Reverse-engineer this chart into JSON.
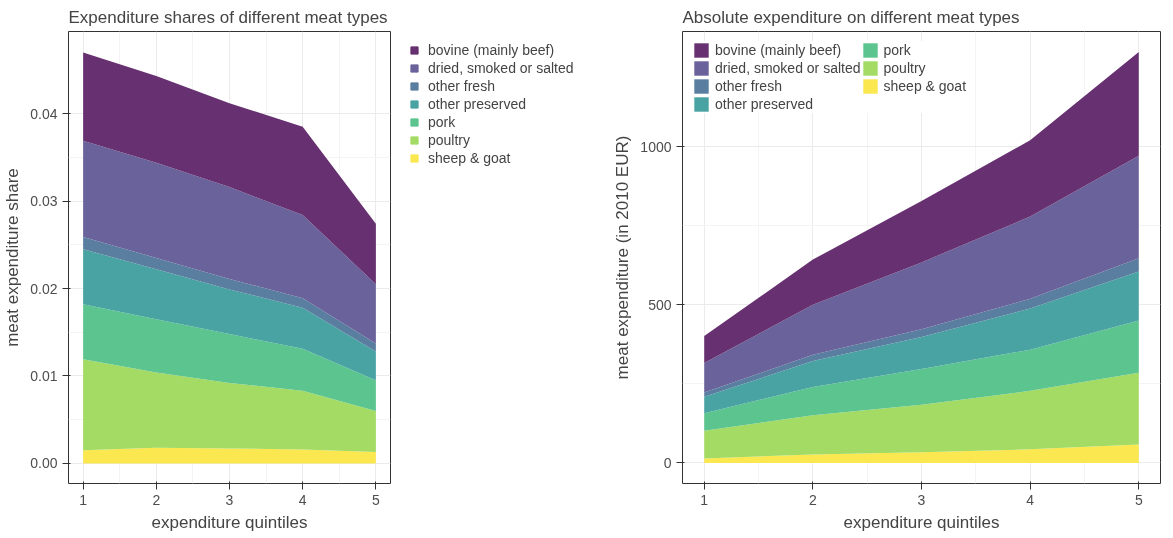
{
  "chart_data": [
    {
      "type": "area",
      "title": "Expenditure shares of different meat types",
      "xlabel": "expenditure quintiles",
      "ylabel": "meat expenditure share",
      "stacked": true,
      "x": [
        1,
        2,
        3,
        4,
        5
      ],
      "xlim": [
        0.8,
        5.2
      ],
      "xticks": [
        1,
        2,
        3,
        4,
        5
      ],
      "ylim": [
        -0.0023,
        0.0494
      ],
      "yticks": [
        {
          "value": 0,
          "label": "0.00"
        },
        {
          "value": 0.01,
          "label": "0.01"
        },
        {
          "value": 0.02,
          "label": "0.02"
        },
        {
          "value": 0.03,
          "label": "0.03"
        },
        {
          "value": 0.04,
          "label": "0.04"
        }
      ],
      "grid": true,
      "legend": "top right",
      "series": [
        {
          "name": "sheep & goat",
          "color": "#fbe74f",
          "values": [
            0.0015,
            0.0018,
            0.0017,
            0.0016,
            0.0013
          ]
        },
        {
          "name": "poultry",
          "color": "#a3db65",
          "values": [
            0.0104,
            0.0086,
            0.0075,
            0.0067,
            0.0047
          ]
        },
        {
          "name": "pork",
          "color": "#5bc48f",
          "values": [
            0.0063,
            0.0061,
            0.0056,
            0.0048,
            0.0035
          ]
        },
        {
          "name": "other preserved",
          "color": "#4aa3a3",
          "values": [
            0.0063,
            0.0057,
            0.0051,
            0.0047,
            0.0033
          ]
        },
        {
          "name": "other fresh",
          "color": "#5a7ea0",
          "values": [
            0.0014,
            0.0013,
            0.0012,
            0.0011,
            0.0009
          ]
        },
        {
          "name": "dried, smoked or salted",
          "color": "#6a629a",
          "values": [
            0.011,
            0.0109,
            0.0105,
            0.0095,
            0.0068
          ]
        },
        {
          "name": "bovine (mainly beef)",
          "color": "#673070",
          "values": [
            0.0101,
            0.0099,
            0.0096,
            0.0101,
            0.0069
          ]
        }
      ]
    },
    {
      "type": "area",
      "title": "Absolute expenditure on different meat types",
      "xlabel": "expenditure quintiles",
      "ylabel": "meat expenditure (in 2010 EUR)",
      "stacked": true,
      "x": [
        1,
        2,
        3,
        4,
        5
      ],
      "xlim": [
        0.8,
        5.2
      ],
      "xticks": [
        1,
        2,
        3,
        4,
        5
      ],
      "ylim": [
        -65,
        1364
      ],
      "yticks": [
        0,
        500,
        1000
      ],
      "grid": true,
      "legend": "top left",
      "series": [
        {
          "name": "sheep & goat",
          "color": "#fbe74f",
          "values": [
            14,
            27,
            34,
            43,
            58
          ]
        },
        {
          "name": "poultry",
          "color": "#a3db65",
          "values": [
            88,
            124,
            150,
            185,
            227
          ]
        },
        {
          "name": "pork",
          "color": "#5bc48f",
          "values": [
            55,
            89,
            113,
            130,
            165
          ]
        },
        {
          "name": "other preserved",
          "color": "#4aa3a3",
          "values": [
            52,
            82,
            101,
            130,
            155
          ]
        },
        {
          "name": "other fresh",
          "color": "#5a7ea0",
          "values": [
            14,
            20,
            25,
            31,
            42
          ]
        },
        {
          "name": "dried, smoked or salted",
          "color": "#6a629a",
          "values": [
            93,
            158,
            211,
            260,
            324
          ]
        },
        {
          "name": "bovine (mainly beef)",
          "color": "#673070",
          "values": [
            85,
            143,
            194,
            241,
            328
          ]
        }
      ]
    }
  ]
}
